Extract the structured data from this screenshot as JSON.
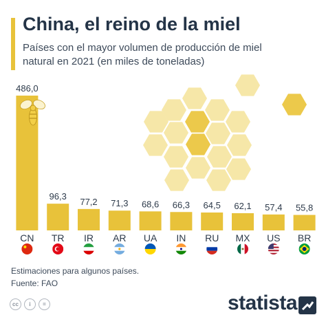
{
  "header": {
    "title": "China, el reino de la miel",
    "subtitle": "Países con el mayor volumen de producción de miel natural en 2021 (en miles de toneladas)"
  },
  "chart_data": {
    "type": "bar",
    "categories": [
      "CN",
      "TR",
      "IR",
      "AR",
      "UA",
      "IN",
      "RU",
      "MX",
      "US",
      "BR"
    ],
    "values": [
      486.0,
      96.3,
      77.2,
      71.3,
      68.6,
      66.3,
      64.5,
      62.1,
      57.4,
      55.8
    ],
    "value_labels": [
      "486,0",
      "96,3",
      "77,2",
      "71,3",
      "68,6",
      "66,3",
      "64,5",
      "62,1",
      "57,4",
      "55,8"
    ],
    "ylim": [
      0,
      486
    ],
    "grid": false,
    "bar_color": "#e8c23a",
    "flag_icons": [
      "china-flag-icon",
      "turkey-flag-icon",
      "iran-flag-icon",
      "argentina-flag-icon",
      "ukraine-flag-icon",
      "india-flag-icon",
      "russia-flag-icon",
      "mexico-flag-icon",
      "usa-flag-icon",
      "brazil-flag-icon"
    ]
  },
  "footer": {
    "note": "Estimaciones para algunos países.",
    "source": "Fuente: FAO",
    "license_icons": [
      "cc-icon",
      "attribution-icon",
      "no-derivatives-icon"
    ],
    "license_labels": [
      "cc",
      "i",
      "="
    ],
    "brand": "statista",
    "brand_icon": "statista-logo-icon"
  },
  "colors": {
    "accent": "#e8c23a",
    "title": "#243447",
    "honeycomb_light": "#f6e7a8",
    "honeycomb_dark": "#ecc94b"
  }
}
